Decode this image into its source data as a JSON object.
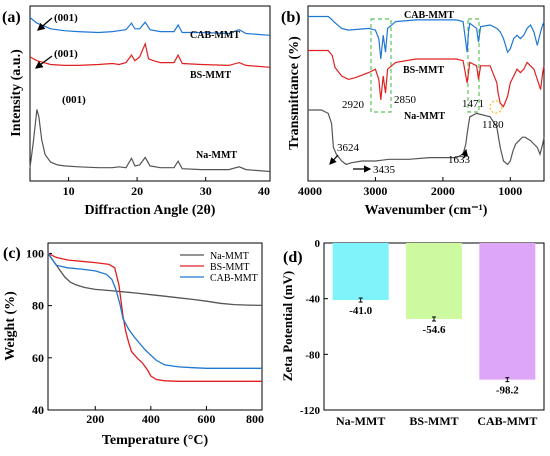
{
  "panels": {
    "a": {
      "panel_label": "(a)",
      "xlabel": "Diffraction Angle (2θ)",
      "ylabel": "Intensity (a.u.)",
      "xticks": [
        "10",
        "20",
        "30",
        "40"
      ],
      "curve_labels": [
        "CAB-MMT",
        "BS-MMT",
        "Na-MMT"
      ],
      "peak_labels": [
        "(001)",
        "(001)",
        "(001)"
      ]
    },
    "b": {
      "panel_label": "(b)",
      "xlabel": "Wavenumber (cm⁻¹)",
      "ylabel": "Transmittance (%)",
      "xticks": [
        "4000",
        "3000",
        "2000",
        "1000"
      ],
      "curve_labels": [
        "CAB-MMT",
        "BS-MMT",
        "Na-MMT"
      ],
      "annotations": [
        "2920",
        "2850",
        "1471",
        "1180",
        "3624",
        "3435",
        "1633"
      ]
    },
    "c": {
      "panel_label": "(c)",
      "xlabel": "Temperature (°C)",
      "ylabel": "Weight (%)",
      "xticks": [
        "200",
        "400",
        "600",
        "800"
      ],
      "yticks": [
        "40",
        "60",
        "80",
        "100"
      ]
    },
    "d": {
      "panel_label": "(d)",
      "ylabel": "Zeta Potential (mV)",
      "yticks": [
        "0",
        "-40",
        "-80",
        "-120"
      ]
    }
  },
  "chart_data": [
    {
      "panel": "a",
      "type": "line",
      "xlabel": "Diffraction Angle (2θ)",
      "ylabel": "Intensity (a.u.)",
      "xlim": [
        5,
        40
      ],
      "yticks_shown": false,
      "series": [
        {
          "name": "CAB-MMT",
          "color": "#1f77d4",
          "x": [
            5,
            6,
            8,
            10,
            12,
            15,
            17,
            18,
            19,
            19.8,
            20.3,
            21,
            21.8,
            22.5,
            24,
            26,
            26.6,
            27.2,
            30,
            34,
            35.5,
            36.5,
            40
          ],
          "y": [
            8.6,
            8.3,
            8.0,
            7.9,
            7.85,
            7.8,
            7.85,
            7.9,
            7.95,
            8.3,
            8.0,
            8.0,
            8.35,
            7.95,
            7.85,
            7.85,
            8.2,
            7.8,
            7.8,
            7.75,
            7.95,
            7.75,
            7.65
          ]
        },
        {
          "name": "BS-MMT",
          "color": "#e02020",
          "x": [
            5,
            6,
            8,
            10,
            12,
            15,
            17,
            18,
            19,
            19.8,
            20.3,
            21,
            21.8,
            22.3,
            23,
            24,
            26,
            26.6,
            27.2,
            30,
            34,
            35.5,
            36.5,
            40
          ],
          "y": [
            6.5,
            6.3,
            6.1,
            6.05,
            6.05,
            6.1,
            6.15,
            6.1,
            6.2,
            6.6,
            6.3,
            6.5,
            7.2,
            6.4,
            6.3,
            6.2,
            6.2,
            6.6,
            6.15,
            6.1,
            6.05,
            6.2,
            6.05,
            5.95
          ]
        },
        {
          "name": "Na-MMT",
          "color": "#555555",
          "x": [
            5,
            5.5,
            6,
            6.3,
            6.7,
            7.2,
            8,
            9,
            10,
            12,
            15,
            17,
            18,
            19,
            19.8,
            20.3,
            21,
            21.8,
            22.5,
            24,
            26,
            26.6,
            27.2,
            30,
            34,
            35.5,
            36.5,
            40
          ],
          "y": [
            0.6,
            2.0,
            3.7,
            3.3,
            2.1,
            1.3,
            0.9,
            0.75,
            0.7,
            0.65,
            0.6,
            0.6,
            0.65,
            0.6,
            1.1,
            0.7,
            0.75,
            1.15,
            0.7,
            0.6,
            0.6,
            0.95,
            0.55,
            0.5,
            0.5,
            0.65,
            0.5,
            0.4
          ]
        }
      ],
      "annotations": [
        {
          "text": "(001)",
          "series": "CAB-MMT"
        },
        {
          "text": "(001)",
          "series": "BS-MMT"
        },
        {
          "text": "(001)",
          "series": "Na-MMT"
        }
      ]
    },
    {
      "panel": "b",
      "type": "line",
      "xlabel": "Wavenumber (cm⁻¹)",
      "ylabel": "Transmittance (%)",
      "xlim": [
        4000,
        500
      ],
      "x_reversed": true,
      "yticks_shown": false,
      "series": [
        {
          "name": "CAB-MMT",
          "color": "#1f77d4",
          "x": [
            4000,
            3700,
            3640,
            3620,
            3500,
            3400,
            3100,
            3000,
            2950,
            2920,
            2885,
            2850,
            2820,
            2700,
            2400,
            2000,
            1800,
            1700,
            1640,
            1620,
            1600,
            1500,
            1471,
            1440,
            1300,
            1200,
            1150,
            1100,
            1040,
            1000,
            950,
            900,
            850,
            800,
            750,
            700,
            650,
            600,
            550,
            520,
            500
          ],
          "y": [
            95,
            95,
            93,
            92,
            88,
            87,
            88,
            87,
            82,
            70,
            84,
            74,
            88,
            92,
            93,
            93,
            93,
            92,
            74,
            86,
            91,
            88,
            80,
            89,
            90,
            88,
            86,
            82,
            74,
            76,
            82,
            84,
            82,
            84,
            88,
            90,
            86,
            78,
            86,
            90,
            92
          ]
        },
        {
          "name": "BS-MMT",
          "color": "#e02020",
          "x": [
            4000,
            3700,
            3640,
            3600,
            3500,
            3400,
            3300,
            3100,
            3000,
            2950,
            2920,
            2885,
            2850,
            2820,
            2700,
            2400,
            2000,
            1800,
            1700,
            1640,
            1620,
            1600,
            1500,
            1471,
            1440,
            1300,
            1200,
            1180,
            1150,
            1100,
            1040,
            1000,
            950,
            900,
            850,
            800,
            750,
            700,
            650,
            600,
            550,
            520,
            500
          ],
          "y": [
            75,
            75,
            72,
            65,
            60,
            58,
            59,
            62,
            64,
            58,
            46,
            60,
            50,
            64,
            68,
            70,
            70,
            70,
            69,
            56,
            62,
            68,
            66,
            58,
            66,
            66,
            56,
            50,
            44,
            42,
            48,
            56,
            60,
            64,
            62,
            64,
            68,
            66,
            64,
            58,
            52,
            62,
            66
          ]
        },
        {
          "name": "Na-MMT",
          "color": "#555555",
          "x": [
            4000,
            3800,
            3700,
            3650,
            3624,
            3580,
            3500,
            3435,
            3350,
            3200,
            3000,
            2800,
            2500,
            2200,
            2000,
            1800,
            1700,
            1660,
            1633,
            1600,
            1500,
            1300,
            1200,
            1150,
            1100,
            1040,
            1000,
            960,
            920,
            870,
            820,
            780,
            700,
            650,
            600,
            560,
            520,
            500
          ],
          "y": [
            40,
            40,
            38,
            32,
            18,
            14,
            10,
            8,
            9,
            10,
            10,
            11,
            11,
            12,
            12,
            12,
            14,
            20,
            28,
            36,
            38,
            36,
            30,
            18,
            10,
            8,
            10,
            16,
            20,
            22,
            24,
            24,
            22,
            20,
            18,
            14,
            20,
            24
          ]
        }
      ],
      "annotations": [
        {
          "text": "2920",
          "x": 2920,
          "series": "BS-MMT"
        },
        {
          "text": "2850",
          "x": 2850,
          "series": "BS-MMT"
        },
        {
          "text": "1471",
          "x": 1471,
          "series": "BS-MMT"
        },
        {
          "text": "1180",
          "x": 1180,
          "series": "BS-MMT"
        },
        {
          "text": "3624",
          "x": 3624,
          "series": "Na-MMT"
        },
        {
          "text": "3435",
          "x": 3435,
          "series": "Na-MMT"
        },
        {
          "text": "1633",
          "x": 1633,
          "series": "Na-MMT"
        }
      ]
    },
    {
      "panel": "c",
      "type": "line",
      "xlabel": "Temperature (°C)",
      "ylabel": "Weight (%)",
      "xlim": [
        30,
        800
      ],
      "ylim": [
        40,
        104
      ],
      "series": [
        {
          "name": "Na-MMT",
          "color": "#555555",
          "x": [
            30,
            50,
            70,
            90,
            110,
            130,
            160,
            200,
            250,
            300,
            350,
            400,
            450,
            500,
            550,
            600,
            650,
            700,
            750,
            800
          ],
          "y": [
            100,
            97,
            94,
            91,
            89,
            88,
            87,
            86.2,
            85.8,
            85.3,
            84.8,
            84.2,
            83.6,
            83,
            82.4,
            81.7,
            80.9,
            80.4,
            80.2,
            80.1
          ]
        },
        {
          "name": "BS-MMT",
          "color": "#e02020",
          "x": [
            30,
            60,
            100,
            150,
            200,
            250,
            270,
            285,
            300,
            310,
            320,
            330,
            350,
            370,
            390,
            400,
            420,
            450,
            500,
            550,
            600,
            700,
            800
          ],
          "y": [
            100,
            98.5,
            97.5,
            97,
            96.5,
            95.8,
            94.5,
            88,
            76,
            70,
            66,
            62.5,
            60,
            58,
            55,
            53,
            51.7,
            51.2,
            51,
            51,
            51,
            51,
            51
          ]
        },
        {
          "name": "CAB-MMT",
          "color": "#1f77d4",
          "x": [
            30,
            60,
            100,
            150,
            200,
            240,
            260,
            275,
            290,
            300,
            320,
            340,
            360,
            380,
            400,
            420,
            450,
            500,
            550,
            600,
            700,
            800
          ],
          "y": [
            100,
            95.5,
            94.5,
            94,
            93.3,
            92,
            90,
            86,
            80,
            75,
            71,
            68,
            65.5,
            63,
            61,
            59,
            57.3,
            56.5,
            56.2,
            56,
            56,
            56
          ]
        }
      ]
    },
    {
      "panel": "d",
      "type": "bar",
      "ylabel": "Zeta Potential (mV)",
      "categories": [
        "Na-MMT",
        "BS-MMT",
        "CAB-MMT"
      ],
      "values": [
        -41.0,
        -54.6,
        -98.2
      ],
      "value_labels": [
        "-41.0",
        "-54.6",
        "-98.2"
      ],
      "colors": [
        "#7ef3fa",
        "#cdf9a0",
        "#dea6f6"
      ],
      "ylim": [
        -120,
        0
      ],
      "error_bars": true
    }
  ]
}
